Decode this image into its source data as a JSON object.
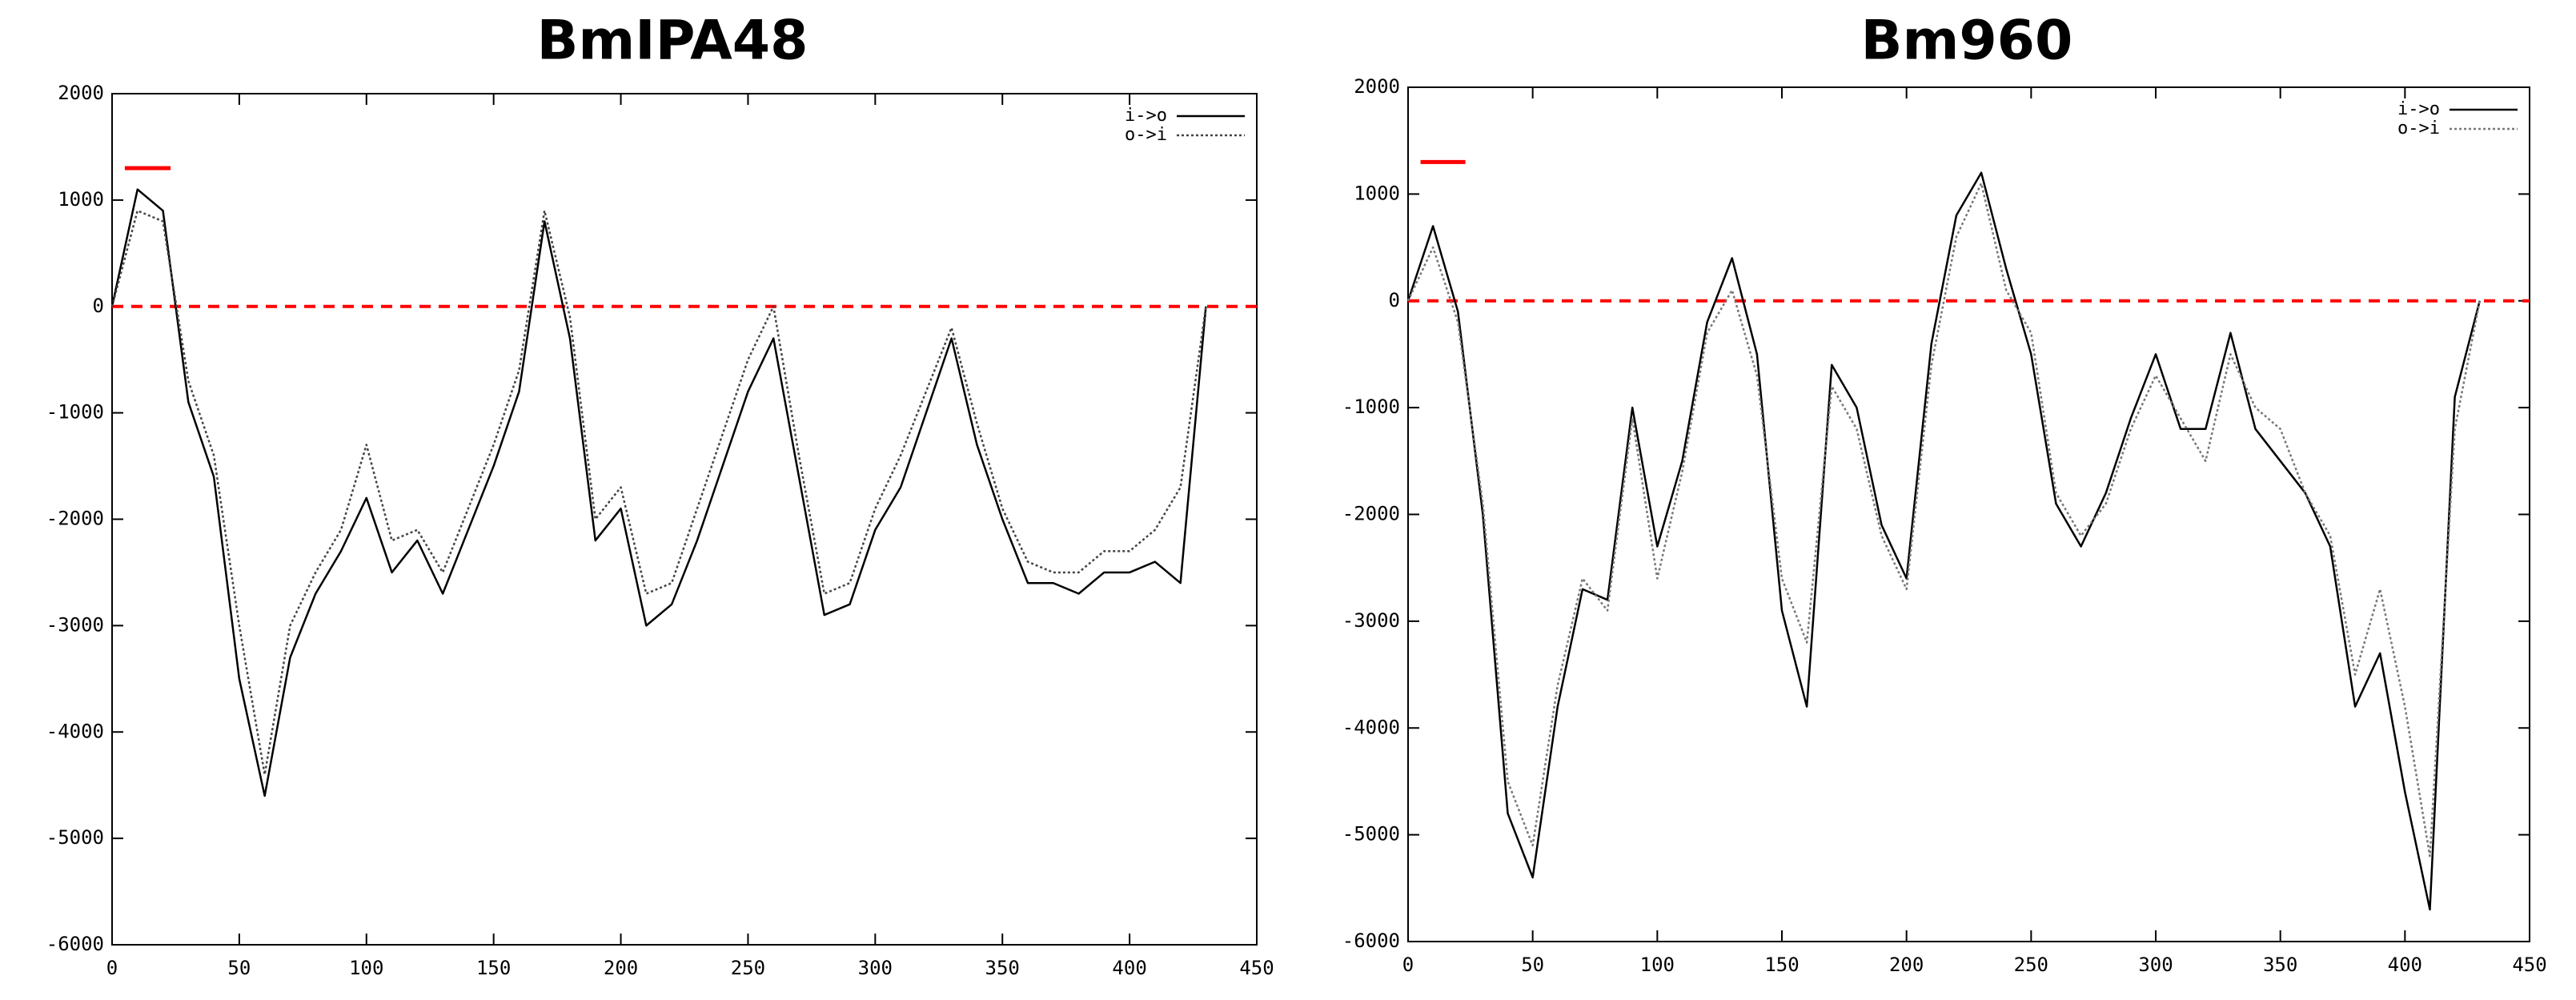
{
  "chart_data": [
    {
      "type": "line",
      "title": "BmIPA48",
      "x": [
        0,
        10,
        20,
        30,
        40,
        50,
        60,
        70,
        80,
        90,
        100,
        110,
        120,
        130,
        140,
        150,
        160,
        170,
        180,
        190,
        200,
        210,
        220,
        230,
        240,
        250,
        260,
        270,
        280,
        290,
        300,
        310,
        320,
        330,
        340,
        350,
        360,
        370,
        380,
        390,
        400,
        410,
        420,
        430
      ],
      "series": [
        {
          "name": "i->o",
          "color": "#000000",
          "linestyle": "solid",
          "values": [
            0,
            1100,
            900,
            -900,
            -1600,
            -3500,
            -4600,
            -3300,
            -2700,
            -2300,
            -1800,
            -2500,
            -2200,
            -2700,
            -2100,
            -1500,
            -800,
            800,
            -300,
            -2200,
            -1900,
            -3000,
            -2800,
            -2200,
            -1500,
            -800,
            -300,
            -1600,
            -2900,
            -2800,
            -2100,
            -1700,
            -1000,
            -300,
            -1300,
            -2000,
            -2600,
            -2600,
            -2700,
            -2500,
            -2500,
            -2400,
            -2600,
            0
          ]
        },
        {
          "name": "o->i",
          "color": "#444444",
          "linestyle": "dotted",
          "values": [
            0,
            900,
            800,
            -700,
            -1400,
            -3000,
            -4400,
            -3000,
            -2500,
            -2100,
            -1300,
            -2200,
            -2100,
            -2500,
            -1900,
            -1300,
            -600,
            900,
            -100,
            -2000,
            -1700,
            -2700,
            -2600,
            -1900,
            -1200,
            -500,
            0,
            -1400,
            -2700,
            -2600,
            -1900,
            -1400,
            -800,
            -200,
            -1100,
            -1900,
            -2400,
            -2500,
            -2500,
            -2300,
            -2300,
            -2100,
            -1700,
            0
          ]
        }
      ],
      "xlim": [
        0,
        450
      ],
      "ylim": [
        -6000,
        2000
      ],
      "xticks": [
        0,
        50,
        100,
        150,
        200,
        250,
        300,
        350,
        400,
        450
      ],
      "yticks": [
        -6000,
        -5000,
        -4000,
        -3000,
        -2000,
        -1000,
        0,
        1000,
        2000
      ],
      "reference_line": {
        "value": 0,
        "color": "#ff0000"
      },
      "highlight": {
        "x": [
          5,
          23
        ],
        "y": 1300,
        "color": "#ff0000"
      },
      "legend": "upper right"
    },
    {
      "type": "line",
      "title": "Bm960",
      "x": [
        0,
        10,
        20,
        30,
        40,
        50,
        60,
        70,
        80,
        90,
        100,
        110,
        120,
        130,
        140,
        150,
        160,
        170,
        180,
        190,
        200,
        210,
        220,
        230,
        240,
        250,
        260,
        270,
        280,
        290,
        300,
        310,
        320,
        330,
        340,
        350,
        360,
        370,
        380,
        390,
        400,
        410,
        420,
        430
      ],
      "series": [
        {
          "name": "i->o",
          "color": "#000000",
          "linestyle": "solid",
          "values": [
            0,
            700,
            -100,
            -2000,
            -4800,
            -5400,
            -3800,
            -2700,
            -2800,
            -1000,
            -2300,
            -1500,
            -200,
            400,
            -500,
            -2900,
            -3800,
            -600,
            -1000,
            -2100,
            -2600,
            -400,
            800,
            1200,
            300,
            -500,
            -1900,
            -2300,
            -1800,
            -1100,
            -500,
            -1200,
            -1200,
            -300,
            -1200,
            -1500,
            -1800,
            -2300,
            -3800,
            -3300,
            -4600,
            -5700,
            -900,
            0
          ]
        },
        {
          "name": "o->i",
          "color": "#777777",
          "linestyle": "dotted",
          "values": [
            0,
            500,
            -200,
            -1900,
            -4500,
            -5100,
            -3600,
            -2600,
            -2900,
            -1100,
            -2600,
            -1600,
            -300,
            100,
            -700,
            -2600,
            -3200,
            -800,
            -1200,
            -2200,
            -2700,
            -600,
            600,
            1100,
            100,
            -300,
            -1800,
            -2200,
            -1900,
            -1200,
            -700,
            -1100,
            -1500,
            -500,
            -1000,
            -1200,
            -1800,
            -2200,
            -3500,
            -2700,
            -3800,
            -5200,
            -1200,
            0
          ]
        }
      ],
      "xlim": [
        0,
        450
      ],
      "ylim": [
        -6000,
        2000
      ],
      "xticks": [
        0,
        50,
        100,
        150,
        200,
        250,
        300,
        350,
        400,
        450
      ],
      "yticks": [
        -6000,
        -5000,
        -4000,
        -3000,
        -2000,
        -1000,
        0,
        1000,
        2000
      ],
      "reference_line": {
        "value": 0,
        "color": "#ff0000"
      },
      "highlight": {
        "x": [
          5,
          23
        ],
        "y": 1300,
        "color": "#ff0000"
      },
      "legend": "upper right"
    }
  ]
}
